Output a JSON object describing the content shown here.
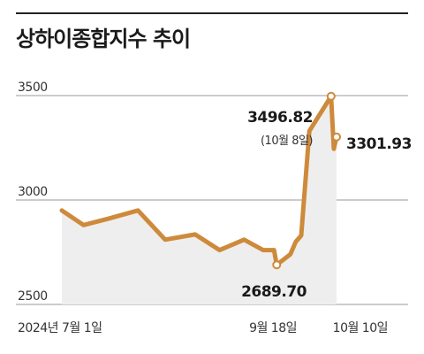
{
  "chart_data": {
    "type": "line",
    "title": "상하이종합지수 추이",
    "ylim": [
      2500,
      3550
    ],
    "y_ticks": [
      3500,
      3000,
      2500
    ],
    "y_tick_labels": [
      "3500",
      "3000",
      "2500"
    ],
    "x_tick_labels": [
      "2024년 7월 1일",
      "9월 18일",
      "10월 10일"
    ],
    "grid": true,
    "colors": {
      "line": "#CE8A3B",
      "area": "#EEEEEE",
      "marker_fill": "#ffffff"
    },
    "series": [
      {
        "points": [
          [
            "2024-07-01",
            2950
          ],
          [
            "2024-07-09",
            2880
          ],
          [
            "2024-07-18",
            2910
          ],
          [
            "2024-07-29",
            2950
          ],
          [
            "2024-08-08",
            2810
          ],
          [
            "2024-08-19",
            2835
          ],
          [
            "2024-08-28",
            2760
          ],
          [
            "2024-09-06",
            2810
          ],
          [
            "2024-09-13",
            2760
          ],
          [
            "2024-09-17",
            2760
          ],
          [
            "2024-09-18",
            2689.7
          ],
          [
            "2024-09-23",
            2740
          ],
          [
            "2024-09-25",
            2800
          ],
          [
            "2024-09-27",
            2830
          ],
          [
            "2024-09-30",
            3330
          ],
          [
            "2024-10-08",
            3496.82
          ],
          [
            "2024-10-09",
            3245
          ],
          [
            "2024-10-10",
            3301.93
          ]
        ]
      }
    ],
    "annotations": [
      {
        "date": "2024-09-18",
        "value": "2689.70"
      },
      {
        "date": "2024-10-08",
        "value": "3496.82",
        "note": "(10월 8일)"
      },
      {
        "date": "2024-10-10",
        "value": "3301.93"
      }
    ]
  }
}
